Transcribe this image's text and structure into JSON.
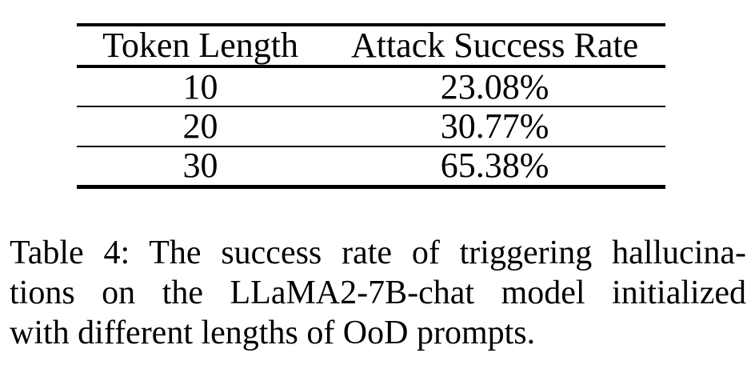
{
  "page": {
    "background_color": "#ffffff",
    "text_color": "#000000"
  },
  "table": {
    "columns": [
      "Token Length",
      "Attack Success Rate"
    ],
    "rows": [
      [
        "10",
        "23.08%"
      ],
      [
        "20",
        "30.77%"
      ],
      [
        "30",
        "65.38%"
      ]
    ]
  },
  "caption": {
    "label": "Table 4:",
    "full_text": "Table 4: The success rate of triggering hallucinations on the LLaMA2-7B-chat model initialized with different lengths of OoD prompts.",
    "lines": [
      "Table 4: The success rate of triggering hallucina-",
      "tions on the LLaMA2-7B-chat model initialized",
      "with different lengths of OoD prompts."
    ]
  }
}
